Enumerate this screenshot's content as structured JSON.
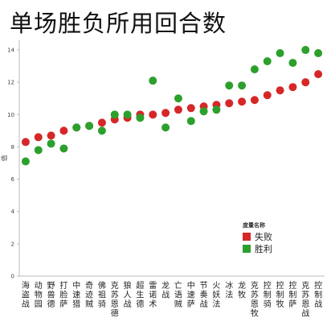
{
  "chart_data": {
    "type": "scatter",
    "title": "单场胜负所用回合数",
    "ylabel": "值",
    "xlabel": "",
    "ylim": [
      0,
      14.6
    ],
    "yticks": [
      0,
      2,
      4,
      6,
      8,
      10,
      12,
      14
    ],
    "grid": false,
    "legend": {
      "title": "度量名称",
      "position": "bottom-right"
    },
    "categories": [
      "海盗战",
      "动物园",
      "野兽德",
      "打脸萨",
      "中速猎",
      "奇迹贼",
      "佛祖骑",
      "克苏恩德",
      "狼人战",
      "超生德",
      "雷诺术",
      "龙战",
      "亡语贼",
      "中速萨",
      "节奏战",
      "火妖法",
      "冰法",
      "龙牧",
      "克苏恩牧",
      "控制骑",
      "控制牧",
      "控制萨",
      "克苏恩战",
      "控制战"
    ],
    "series": [
      {
        "name": "失败",
        "color": "#d62728",
        "values": [
          8.3,
          8.6,
          8.7,
          9.0,
          9.2,
          9.3,
          9.5,
          9.7,
          9.8,
          10.0,
          10.0,
          10.1,
          10.3,
          10.4,
          10.5,
          10.6,
          10.7,
          10.8,
          10.9,
          11.2,
          11.5,
          11.7,
          12.0,
          12.5
        ]
      },
      {
        "name": "胜利",
        "color": "#2ca02c",
        "values": [
          7.1,
          7.8,
          8.2,
          7.9,
          9.2,
          9.3,
          9.0,
          10.0,
          10.0,
          9.8,
          12.1,
          9.2,
          11.0,
          9.6,
          10.2,
          10.3,
          11.8,
          11.8,
          12.8,
          13.3,
          13.8,
          13.2,
          14.0,
          13.8
        ]
      }
    ]
  }
}
